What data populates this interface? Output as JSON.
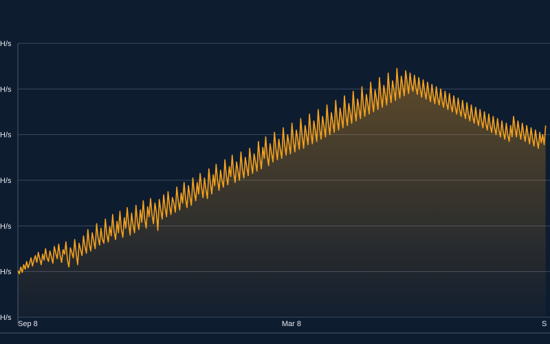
{
  "chart_data": {
    "type": "line",
    "series": [
      {
        "values_note": "weekly-ish hashrate samples",
        "color": "#f6a21e"
      }
    ],
    "y_ticks": [
      {
        "value": 0,
        "label": "H/s"
      },
      {
        "value": 1,
        "label": "H/s"
      },
      {
        "value": 2,
        "label": "H/s"
      },
      {
        "value": 3,
        "label": "H/s"
      },
      {
        "value": 4,
        "label": "H/s"
      },
      {
        "value": 5,
        "label": "H/s"
      },
      {
        "value": 6,
        "label": "H/s"
      }
    ],
    "x_ticks": [
      {
        "index": 0,
        "label": "Sep 8"
      },
      {
        "index": 181,
        "label": "Mar 8"
      },
      {
        "index": 365,
        "label": "S"
      }
    ],
    "x_count": 366,
    "ylim": [
      0,
      6
    ],
    "grid": true,
    "values": [
      1.02,
      0.95,
      1.1,
      0.98,
      1.15,
      1.05,
      1.22,
      1.08,
      1.18,
      1.3,
      1.12,
      1.25,
      1.35,
      1.2,
      1.42,
      1.28,
      1.15,
      1.38,
      1.25,
      1.5,
      1.3,
      1.22,
      1.45,
      1.32,
      1.18,
      1.55,
      1.4,
      1.28,
      1.6,
      1.35,
      1.2,
      1.48,
      1.38,
      1.65,
      1.25,
      1.1,
      1.52,
      1.42,
      1.3,
      1.7,
      1.4,
      1.15,
      1.62,
      1.48,
      1.35,
      1.78,
      1.55,
      1.4,
      1.92,
      1.6,
      1.45,
      1.85,
      1.68,
      1.5,
      2.05,
      1.75,
      1.58,
      1.95,
      1.7,
      1.62,
      2.15,
      1.82,
      1.65,
      1.98,
      1.78,
      2.25,
      1.88,
      1.7,
      2.1,
      1.85,
      2.32,
      1.92,
      1.75,
      2.18,
      1.95,
      2.4,
      2.05,
      1.8,
      2.28,
      2.02,
      1.85,
      2.45,
      2.1,
      1.92,
      2.35,
      2.08,
      2.55,
      2.15,
      1.95,
      2.42,
      2.2,
      2.6,
      2.25,
      2.05,
      2.5,
      2.3,
      1.9,
      2.58,
      2.35,
      2.15,
      2.68,
      2.4,
      2.2,
      2.75,
      2.45,
      2.25,
      2.62,
      2.5,
      2.3,
      2.85,
      2.55,
      2.35,
      2.72,
      2.5,
      2.95,
      2.6,
      2.4,
      2.88,
      2.65,
      2.45,
      3.05,
      2.75,
      2.55,
      2.95,
      2.7,
      3.15,
      2.85,
      2.62,
      3.05,
      2.8,
      2.6,
      3.25,
      2.95,
      2.7,
      3.12,
      2.88,
      3.35,
      3.0,
      2.78,
      3.22,
      3.0,
      2.85,
      3.45,
      3.1,
      2.9,
      3.3,
      3.08,
      3.55,
      3.18,
      2.95,
      3.4,
      3.2,
      3.0,
      3.62,
      3.25,
      3.05,
      3.5,
      3.3,
      3.1,
      3.7,
      3.38,
      3.15,
      3.58,
      3.4,
      3.2,
      3.85,
      3.5,
      3.25,
      3.72,
      3.48,
      3.95,
      3.55,
      3.32,
      3.8,
      3.6,
      3.4,
      4.05,
      3.7,
      3.45,
      3.9,
      3.68,
      3.48,
      4.15,
      3.78,
      3.55,
      4.0,
      3.8,
      3.58,
      4.25,
      3.88,
      3.62,
      4.1,
      3.9,
      3.68,
      4.35,
      3.98,
      3.7,
      4.2,
      4.0,
      3.78,
      4.45,
      4.05,
      3.8,
      4.3,
      4.1,
      3.85,
      4.55,
      4.15,
      3.9,
      4.4,
      4.18,
      3.95,
      4.65,
      4.25,
      4.0,
      4.48,
      4.28,
      4.05,
      4.75,
      4.35,
      4.1,
      4.58,
      4.38,
      4.15,
      4.85,
      4.45,
      4.2,
      4.68,
      4.48,
      4.25,
      4.95,
      4.55,
      4.3,
      4.78,
      4.58,
      4.35,
      5.05,
      4.65,
      4.4,
      4.88,
      4.68,
      4.45,
      5.15,
      4.75,
      4.5,
      4.98,
      4.78,
      4.55,
      5.25,
      4.85,
      4.6,
      5.08,
      4.88,
      4.65,
      5.35,
      4.95,
      4.7,
      5.18,
      4.98,
      4.75,
      5.45,
      5.05,
      4.8,
      5.28,
      5.08,
      4.85,
      5.4,
      5.15,
      4.9,
      5.35,
      5.1,
      4.95,
      5.3,
      5.05,
      4.88,
      5.25,
      5.0,
      4.82,
      5.2,
      4.95,
      4.78,
      5.15,
      4.9,
      4.72,
      5.1,
      4.85,
      4.68,
      5.05,
      4.8,
      4.65,
      5.0,
      4.75,
      4.6,
      4.95,
      4.7,
      4.55,
      4.9,
      4.65,
      4.5,
      4.85,
      4.6,
      4.45,
      4.8,
      4.55,
      4.4,
      4.75,
      4.5,
      4.35,
      4.7,
      4.45,
      4.3,
      4.65,
      4.4,
      4.25,
      4.6,
      4.35,
      4.2,
      4.55,
      4.3,
      4.15,
      4.5,
      4.25,
      4.1,
      4.45,
      4.2,
      4.05,
      4.4,
      4.15,
      4.0,
      4.35,
      4.1,
      3.95,
      4.3,
      4.05,
      3.9,
      4.25,
      4.0,
      3.85,
      4.2,
      3.95,
      4.4,
      4.15,
      3.95,
      4.3,
      4.08,
      3.9,
      4.25,
      4.02,
      3.85,
      4.2,
      3.98,
      3.8,
      4.15,
      3.92,
      3.75,
      4.1,
      3.88,
      3.7,
      4.05,
      3.82,
      4.0,
      3.78,
      4.2
    ]
  }
}
